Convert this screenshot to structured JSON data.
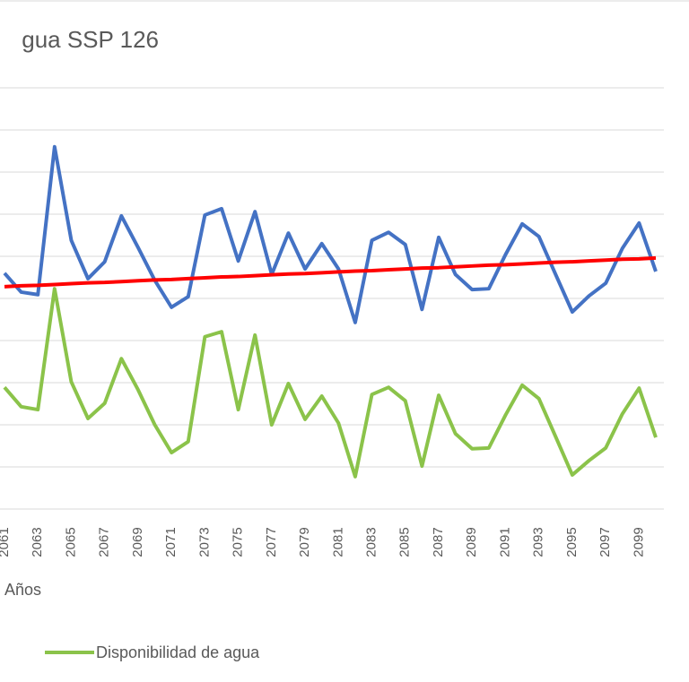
{
  "chart_data": {
    "type": "line",
    "title": "gua SSP 126",
    "x_label": "Años",
    "categories": [
      "2061",
      null,
      "2063",
      null,
      "2065",
      null,
      "2067",
      null,
      "2069",
      null,
      "2071",
      null,
      "2073",
      null,
      "2075",
      null,
      "2077",
      null,
      "2079",
      null,
      "2081",
      null,
      "2083",
      null,
      "2085",
      null,
      "2087",
      null,
      "2089",
      null,
      "2091",
      null,
      "2093",
      null,
      "2095",
      null,
      "2097",
      null,
      "2099",
      null
    ],
    "series": [
      {
        "color": "#4472c4",
        "values": [
          5.6,
          5.15,
          5.09,
          8.6,
          6.38,
          5.47,
          5.87,
          6.96,
          6.21,
          5.43,
          4.79,
          5.04,
          6.98,
          7.13,
          5.89,
          7.06,
          5.57,
          6.55,
          5.7,
          6.3,
          5.7,
          4.43,
          6.38,
          6.57,
          6.28,
          4.74,
          6.45,
          5.57,
          5.21,
          5.23,
          6.04,
          6.77,
          6.47,
          5.57,
          4.68,
          5.06,
          5.36,
          6.19,
          6.79,
          5.64
        ]
      },
      {
        "name": "Disponibilidad de agua",
        "color": "#8bc34a",
        "values": [
          2.89,
          2.43,
          2.36,
          5.23,
          3.02,
          2.15,
          2.51,
          3.57,
          2.83,
          2.0,
          1.34,
          1.6,
          4.09,
          4.21,
          2.36,
          4.13,
          2.0,
          2.98,
          2.13,
          2.68,
          2.04,
          0.77,
          2.72,
          2.89,
          2.57,
          1.02,
          2.7,
          1.79,
          1.43,
          1.45,
          2.23,
          2.94,
          2.62,
          1.72,
          0.81,
          1.15,
          1.45,
          2.26,
          2.87,
          1.7
        ]
      },
      {
        "color": "#ff0000",
        "values": [
          5.28,
          5.3,
          5.31,
          5.33,
          5.35,
          5.37,
          5.38,
          5.4,
          5.42,
          5.44,
          5.45,
          5.47,
          5.49,
          5.51,
          5.52,
          5.54,
          5.56,
          5.58,
          5.59,
          5.61,
          5.63,
          5.65,
          5.66,
          5.68,
          5.7,
          5.72,
          5.73,
          5.75,
          5.77,
          5.79,
          5.8,
          5.82,
          5.84,
          5.86,
          5.87,
          5.89,
          5.91,
          5.93,
          5.94,
          5.96
        ]
      }
    ],
    "ylim": [
      0,
      11
    ],
    "yticks": [
      0,
      1,
      2,
      3,
      4,
      5,
      6,
      7,
      8,
      9,
      10
    ],
    "grid": true
  }
}
